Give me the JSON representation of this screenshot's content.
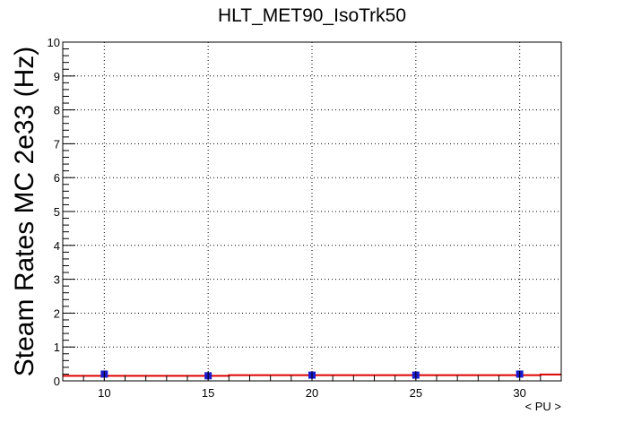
{
  "chart_data": {
    "type": "scatter",
    "title": "HLT_MET90_IsoTrk50",
    "xlabel": "< PU >",
    "ylabel": "Steam Rates MC 2e33 (Hz)",
    "xlim": [
      8,
      32
    ],
    "ylim": [
      0,
      10
    ],
    "xticks": [
      10,
      15,
      20,
      25,
      30
    ],
    "yticks": [
      0,
      1,
      2,
      3,
      4,
      5,
      6,
      7,
      8,
      9,
      10
    ],
    "grid": true,
    "colors": {
      "points": "#1a1acc",
      "fit": "#dd0000"
    },
    "points": {
      "x": [
        10,
        15,
        20,
        25,
        30
      ],
      "y": [
        0.2,
        0.15,
        0.17,
        0.17,
        0.2
      ]
    },
    "fit": {
      "x": [
        8,
        16,
        16,
        31,
        31,
        32
      ],
      "y": [
        0.15,
        0.15,
        0.17,
        0.17,
        0.19,
        0.19
      ]
    }
  }
}
